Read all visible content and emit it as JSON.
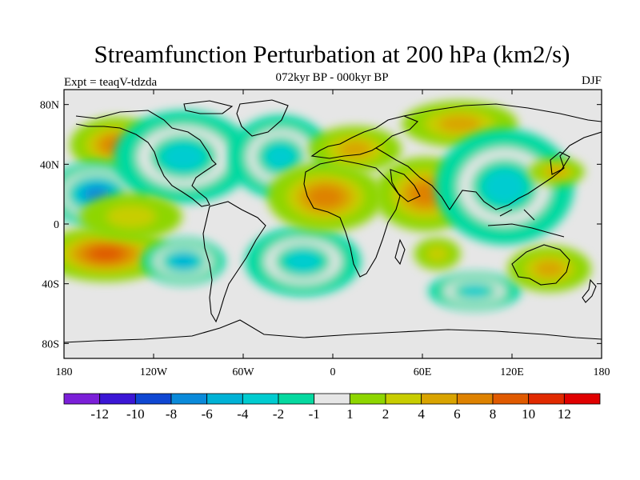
{
  "title": "Streamfunction Perturbation at 200 hPa (km2/s)",
  "subtitle": "072kyr BP - 000kyr BP",
  "experiment": "Expt = teaqV-tdzda",
  "season": "DJF",
  "map": {
    "lon_range": [
      -180,
      180
    ],
    "lat_range": [
      -90,
      90
    ],
    "lat_ticks": [
      {
        "value": 80,
        "label": "80N"
      },
      {
        "value": 40,
        "label": "40N"
      },
      {
        "value": 0,
        "label": "0"
      },
      {
        "value": -40,
        "label": "40S"
      },
      {
        "value": -80,
        "label": "80S"
      }
    ],
    "lon_ticks": [
      {
        "value": -180,
        "label": "180"
      },
      {
        "value": -120,
        "label": "120W"
      },
      {
        "value": -60,
        "label": "60W"
      },
      {
        "value": 0,
        "label": "0"
      },
      {
        "value": 60,
        "label": "60E"
      },
      {
        "value": 120,
        "label": "120E"
      },
      {
        "value": 180,
        "label": "180"
      }
    ],
    "background_color": "#e6e6e6",
    "features": [
      {
        "name": "anomaly-n-pacific-warm",
        "lon": -145,
        "lat": 53,
        "rx": 20,
        "ry": 12,
        "level": 6
      },
      {
        "name": "anomaly-e-pacific-cold",
        "lon": -158,
        "lat": 20,
        "rx": 22,
        "ry": 14,
        "level": -8
      },
      {
        "name": "anomaly-s-pacific-warm",
        "lon": -152,
        "lat": -20,
        "rx": 28,
        "ry": 12,
        "level": 8
      },
      {
        "name": "anomaly-n-america-cold",
        "lon": -100,
        "lat": 45,
        "rx": 30,
        "ry": 20,
        "level": -4
      },
      {
        "name": "anomaly-n-atlantic-cold",
        "lon": -35,
        "lat": 45,
        "rx": 22,
        "ry": 18,
        "level": -4
      },
      {
        "name": "anomaly-s-pacific-cold",
        "lon": -100,
        "lat": -25,
        "rx": 18,
        "ry": 10,
        "level": -6
      },
      {
        "name": "anomaly-s-atlantic-cold",
        "lon": -20,
        "lat": -25,
        "rx": 25,
        "ry": 15,
        "level": -4
      },
      {
        "name": "anomaly-africa-warm",
        "lon": -5,
        "lat": 18,
        "rx": 25,
        "ry": 15,
        "level": 6
      },
      {
        "name": "anomaly-europe-warm",
        "lon": 15,
        "lat": 50,
        "rx": 20,
        "ry": 10,
        "level": 4
      },
      {
        "name": "anomaly-arabia-warm",
        "lon": 62,
        "lat": 20,
        "rx": 22,
        "ry": 16,
        "level": 6
      },
      {
        "name": "anomaly-siberia-warm",
        "lon": 85,
        "lat": 67,
        "rx": 25,
        "ry": 10,
        "level": 4
      },
      {
        "name": "anomaly-e-asia-cold",
        "lon": 115,
        "lat": 25,
        "rx": 30,
        "ry": 25,
        "level": -4
      },
      {
        "name": "anomaly-w-pacific-warm",
        "lon": 150,
        "lat": 35,
        "rx": 12,
        "ry": 6,
        "level": 4
      },
      {
        "name": "anomaly-indian-ocean-cold",
        "lon": 95,
        "lat": -45,
        "rx": 20,
        "ry": 8,
        "level": -4
      },
      {
        "name": "anomaly-australia-warm",
        "lon": 145,
        "lat": -30,
        "rx": 18,
        "ry": 10,
        "level": 4
      },
      {
        "name": "anomaly-s-indian-warm",
        "lon": 70,
        "lat": -20,
        "rx": 10,
        "ry": 7,
        "level": 2
      },
      {
        "name": "anomaly-tropical-pacific-warm",
        "lon": -135,
        "lat": 5,
        "rx": 22,
        "ry": 10,
        "level": 2
      }
    ]
  },
  "colorbar": {
    "colors": [
      "#7b1fd8",
      "#3b16d5",
      "#0f47d2",
      "#0a8ada",
      "#00b2d6",
      "#00ccd0",
      "#05d9a0",
      "#e6e6e6",
      "#8ed600",
      "#c8cd00",
      "#d9a400",
      "#de8200",
      "#e05a00",
      "#e12a00",
      "#e00000"
    ],
    "labels": [
      "-12",
      "-10",
      "-8",
      "-6",
      "-4",
      "-2",
      "-1",
      "1",
      "2",
      "4",
      "6",
      "8",
      "10",
      "12"
    ]
  }
}
